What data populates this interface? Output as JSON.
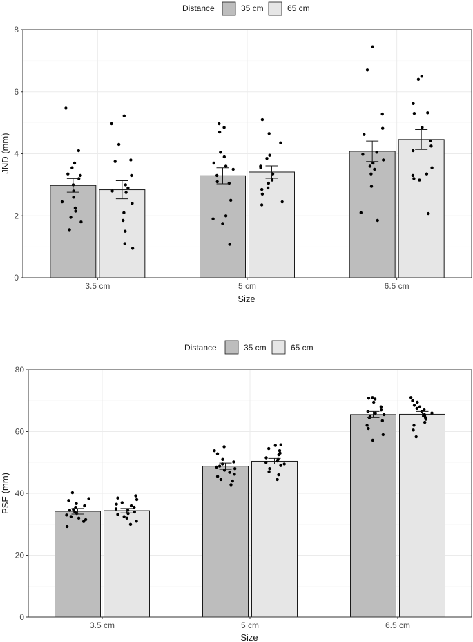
{
  "legend": {
    "title": "Distance"
  },
  "colors": {
    "series_a": "#bdbdbd",
    "series_b": "#e6e6e6",
    "stroke": "#1a1a1a",
    "grid": "#ebebeb",
    "grid_minor": "#f5f5f5",
    "point": "#000000"
  },
  "chart_data": [
    {
      "type": "bar",
      "categories": [
        "3.5 cm",
        "5 cm",
        "6.5 cm"
      ],
      "xlabel": "Size",
      "ylabel": "JND (mm)",
      "ylim": [
        0,
        8
      ],
      "yticks": [
        0,
        2,
        4,
        6,
        8
      ],
      "legend_title": "Distance",
      "legend_position": "top",
      "series": [
        {
          "name": "35 cm",
          "values": [
            2.98,
            3.29,
            4.08
          ],
          "errors": [
            0.22,
            0.26,
            0.33
          ],
          "points": [
            [
              5.47,
              4.1,
              3.7,
              3.55,
              3.35,
              3.3,
              3.2,
              3.0,
              2.8,
              2.6,
              2.45,
              2.25,
              2.15,
              1.95,
              1.8,
              1.55
            ],
            [
              4.97,
              4.85,
              4.7,
              4.05,
              3.9,
              3.7,
              3.6,
              3.5,
              3.3,
              3.1,
              3.05,
              2.5,
              2.0,
              1.9,
              1.75,
              1.08
            ],
            [
              7.45,
              6.7,
              5.28,
              4.82,
              4.62,
              4.05,
              3.98,
              3.8,
              3.7,
              3.6,
              3.5,
              3.35,
              2.95,
              2.1,
              1.85
            ]
          ]
        },
        {
          "name": "65 cm",
          "values": [
            2.84,
            3.41,
            4.46
          ],
          "errors": [
            0.29,
            0.2,
            0.32
          ],
          "points": [
            [
              5.22,
              4.97,
              4.3,
              3.8,
              3.75,
              3.3,
              3.0,
              2.9,
              2.8,
              2.75,
              2.4,
              2.1,
              1.85,
              1.5,
              1.1,
              0.95
            ],
            [
              5.1,
              4.65,
              4.35,
              3.95,
              3.85,
              3.6,
              3.55,
              3.35,
              3.15,
              3.05,
              2.9,
              2.85,
              2.7,
              2.45,
              2.35
            ],
            [
              6.5,
              6.4,
              5.62,
              5.32,
              5.3,
              4.85,
              4.42,
              4.25,
              4.1,
              3.55,
              3.35,
              3.3,
              3.2,
              3.15,
              2.07
            ]
          ]
        }
      ]
    },
    {
      "type": "bar",
      "categories": [
        "3.5 cm",
        "5 cm",
        "6.5 cm"
      ],
      "xlabel": "Size",
      "ylabel": "PSE (mm)",
      "ylim": [
        0,
        80
      ],
      "yticks": [
        0,
        20,
        40,
        60,
        80
      ],
      "legend_title": "Distance",
      "legend_position": "top",
      "series": [
        {
          "name": "35 cm",
          "values": [
            34.2,
            48.8,
            65.5
          ],
          "errors": [
            0.9,
            1.0,
            1.0
          ],
          "points": [
            [
              40.2,
              38.3,
              37.7,
              36.7,
              36.0,
              35.5,
              34.8,
              34.5,
              34.0,
              33.5,
              33.0,
              32.5,
              32.0,
              31.5,
              30.9,
              29.3
            ],
            [
              55.1,
              53.8,
              52.8,
              51.0,
              50.2,
              49.5,
              48.8,
              48.5,
              48.0,
              47.5,
              46.8,
              46.2,
              45.5,
              44.5,
              44.0,
              42.8
            ],
            [
              71.0,
              70.8,
              70.5,
              69.5,
              68.0,
              67.0,
              66.5,
              66.0,
              65.5,
              64.8,
              64.5,
              63.5,
              62.0,
              61.0,
              59.0,
              57.2
            ]
          ]
        },
        {
          "name": "65 cm",
          "values": [
            34.4,
            50.4,
            65.6
          ],
          "errors": [
            0.7,
            0.9,
            0.9
          ],
          "points": [
            [
              39.2,
              38.5,
              38.0,
              37.0,
              36.5,
              36.0,
              35.5,
              35.0,
              34.5,
              34.0,
              33.5,
              33.2,
              32.5,
              32.0,
              31.0,
              30.0
            ],
            [
              55.7,
              55.5,
              54.5,
              53.8,
              53.0,
              52.5,
              51.5,
              51.0,
              50.5,
              50.0,
              49.5,
              49.0,
              48.0,
              47.0,
              46.0,
              44.5
            ],
            [
              71.0,
              70.0,
              69.5,
              68.5,
              68.0,
              67.5,
              67.0,
              66.5,
              66.0,
              65.5,
              65.0,
              64.5,
              64.0,
              63.0,
              62.0,
              60.5,
              58.3
            ]
          ]
        }
      ]
    }
  ]
}
